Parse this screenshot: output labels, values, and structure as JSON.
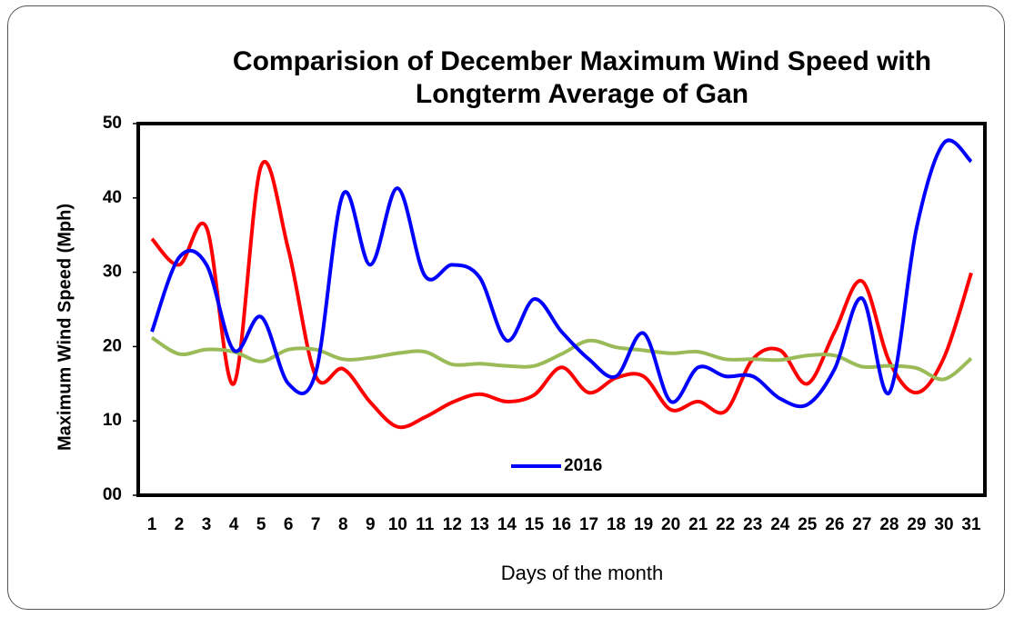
{
  "chart_data": {
    "type": "line",
    "title": "Comparision of December Maximum Wind Speed with Longterm Average of Gan",
    "x_label": "Days of the month",
    "y_label": "Maximum Wind Speed (Mph)",
    "categories": [
      "1",
      "2",
      "3",
      "4",
      "5",
      "6",
      "7",
      "8",
      "9",
      "10",
      "11",
      "12",
      "13",
      "14",
      "15",
      "16",
      "17",
      "18",
      "19",
      "20",
      "21",
      "22",
      "23",
      "24",
      "25",
      "26",
      "27",
      "28",
      "29",
      "30",
      "31"
    ],
    "ylim": [
      0,
      50
    ],
    "yticks": [
      {
        "value": 0,
        "label": "00"
      },
      10,
      20,
      30,
      40,
      50
    ],
    "grid": false,
    "legend": "bottom",
    "smooth": true,
    "series": [
      {
        "color": "#ff0000",
        "values": [
          34.5,
          31,
          36,
          15,
          44.3,
          33,
          16,
          17,
          12.5,
          9.2,
          10.5,
          12.5,
          13.6,
          12.6,
          13.5,
          17.2,
          13.8,
          15.8,
          16,
          11.5,
          12.6,
          11.3,
          18.3,
          19.5,
          15,
          22,
          28.8,
          18,
          13.8,
          18.5,
          29.9
        ]
      },
      {
        "color": "#9bbb59",
        "values": [
          21.2,
          19,
          19.6,
          19.3,
          18,
          19.6,
          19.6,
          18.3,
          18.5,
          19.1,
          19.3,
          17.6,
          17.7,
          17.4,
          17.4,
          19,
          20.8,
          19.9,
          19.5,
          19.1,
          19.3,
          18.3,
          18.3,
          18.2,
          18.8,
          18.8,
          17.3,
          17.4,
          17.1,
          15.6,
          18.4
        ]
      },
      {
        "name": "2016",
        "color": "#0000ff",
        "values": [
          22,
          32,
          31,
          19.5,
          24,
          15,
          16.5,
          40.5,
          31,
          41.3,
          29.5,
          31,
          29.3,
          20.8,
          26.4,
          22,
          18.3,
          16,
          21.8,
          12.6,
          17.2,
          16,
          16,
          13,
          12.2,
          17,
          26.5,
          13.8,
          36,
          47.4,
          44.9
        ]
      }
    ]
  }
}
